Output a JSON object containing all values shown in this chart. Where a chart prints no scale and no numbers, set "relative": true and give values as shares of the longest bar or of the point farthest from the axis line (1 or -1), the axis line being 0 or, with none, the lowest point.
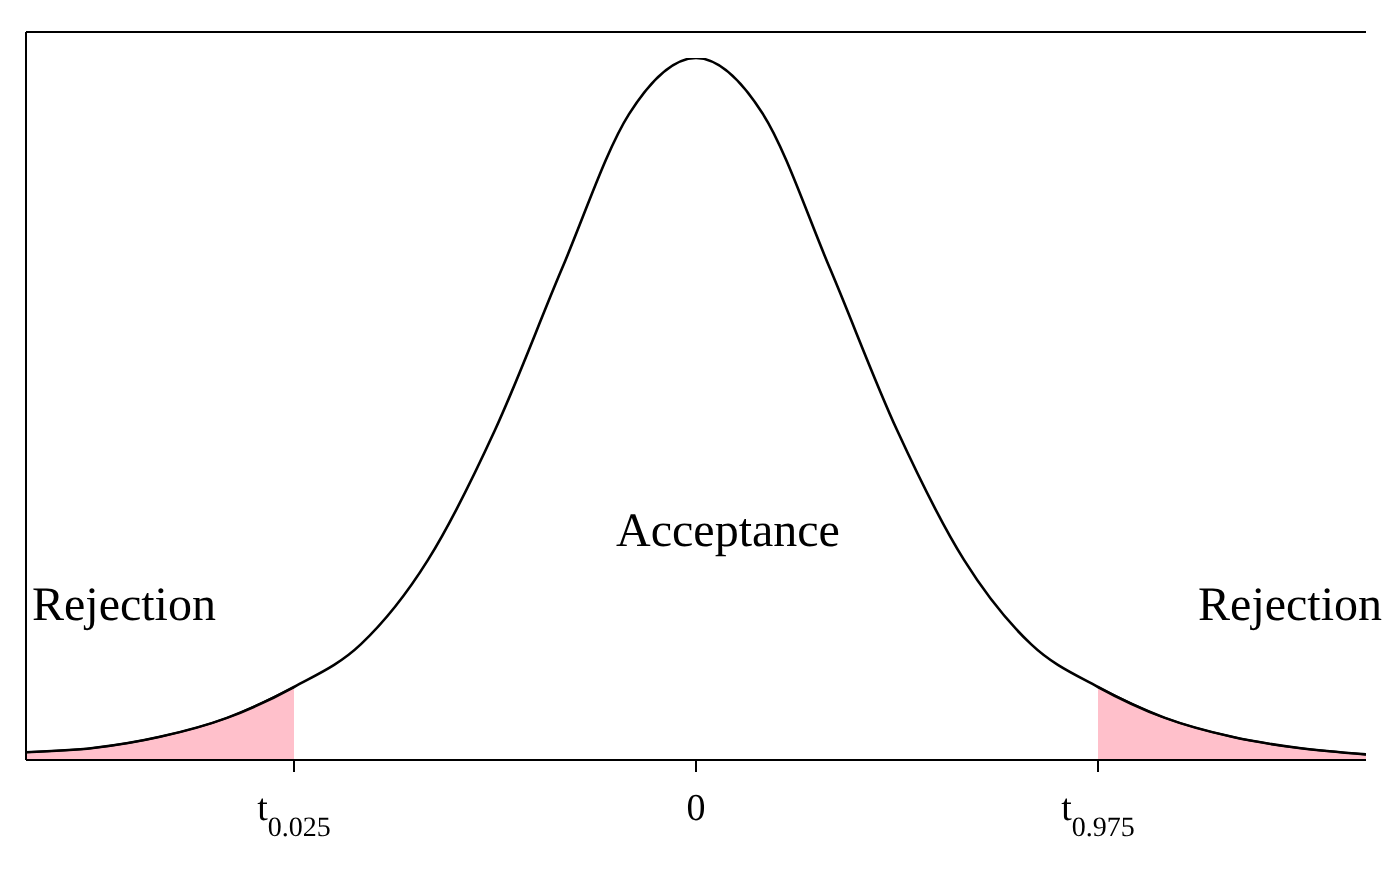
{
  "chart_data": {
    "type": "line",
    "relative": true,
    "categories": [
      null,
      null,
      null,
      null,
      "t$_{0.025}$",
      null,
      null,
      null,
      null,
      null,
      "0",
      null,
      null,
      null,
      null,
      null,
      "t$_{0.975}$",
      null,
      null,
      null,
      null
    ],
    "tick_labels": "x",
    "grid": false,
    "legend": false,
    "marker": "none",
    "line_style": "solid",
    "series": [
      {
        "color": "#000000",
        "values": [
          0.011,
          0.017,
          0.033,
          0.06,
          0.104,
          0.165,
          0.285,
          0.47,
          0.7,
          0.92,
          1,
          0.92,
          0.7,
          0.47,
          0.285,
          0.165,
          0.104,
          0.06,
          0.033,
          0.017,
          0.008
        ]
      },
      {
        "type": "area",
        "color": "#ffc0cb",
        "values": [
          0.011,
          0.017,
          0.033,
          0.06,
          0.104,
          null,
          null,
          null,
          null,
          null,
          null,
          null,
          null,
          null,
          null,
          null,
          null,
          null,
          null,
          null,
          null
        ]
      },
      {
        "type": "area",
        "color": "#ffc0cb",
        "values": [
          null,
          null,
          null,
          null,
          null,
          null,
          null,
          null,
          null,
          null,
          null,
          null,
          null,
          null,
          null,
          null,
          0.104,
          0.06,
          0.033,
          0.017,
          0.008
        ]
      }
    ],
    "annotations": [
      "Rejection",
      "Acceptance",
      "Rejection"
    ]
  }
}
